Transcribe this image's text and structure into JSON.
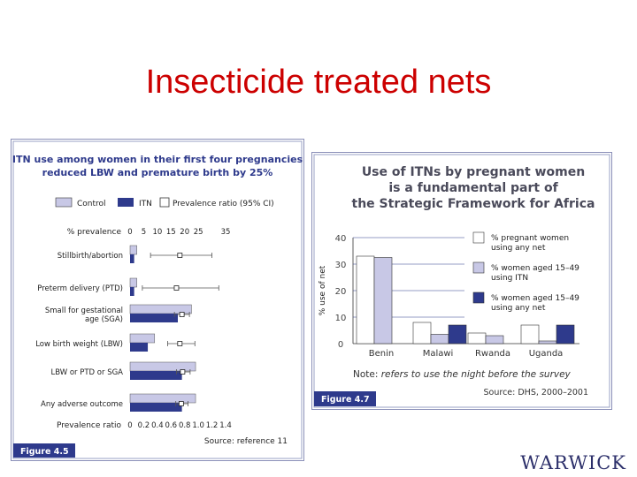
{
  "slide": {
    "title": "Insecticide treated nets",
    "logo": "WARWICK"
  },
  "colors": {
    "control": "#c8c8e6",
    "itn": "#2e3a8c",
    "panel_blue": "#2e3a8c",
    "title_red": "#cc0000"
  },
  "chart_data": [
    {
      "type": "bar",
      "orientation": "horizontal",
      "title": [
        "ITN use among women in their first four pregnancies",
        "reduced LBW and premature birth by 25%"
      ],
      "legend": [
        "Control",
        "ITN",
        "Prevalence ratio (95% CI)"
      ],
      "xlabel_top": "% prevalence",
      "xticks_top": [
        0,
        5,
        10,
        15,
        20,
        25,
        35
      ],
      "xlim_top": [
        0,
        35
      ],
      "xlabel_bottom": "Prevalence ratio",
      "xticks_bottom": [
        0,
        0.2,
        0.4,
        0.6,
        0.8,
        1.0,
        1.2,
        1.4
      ],
      "xlim_bottom": [
        0,
        1.4
      ],
      "categories": [
        [
          "Stillbirth/abortion"
        ],
        [
          "Preterm delivery (PTD)"
        ],
        [
          "Small for gestational",
          "age (SGA)"
        ],
        [
          "Low birth weight (LBW)"
        ],
        [
          "LBW or PTD or SGA"
        ],
        [
          "Any adverse outcome"
        ]
      ],
      "series": [
        {
          "name": "Control",
          "values": [
            2.5,
            2.5,
            22.5,
            9,
            24,
            24
          ]
        },
        {
          "name": "ITN",
          "values": [
            1.5,
            1.5,
            17.5,
            6.5,
            19,
            19
          ]
        }
      ],
      "prevalence_ratio": [
        {
          "value": 0.73,
          "low": 0.3,
          "high": 1.2
        },
        {
          "value": 0.68,
          "low": 0.18,
          "high": 1.3
        },
        {
          "value": 0.76,
          "low": 0.65,
          "high": 0.87
        },
        {
          "value": 0.73,
          "low": 0.55,
          "high": 0.95
        },
        {
          "value": 0.77,
          "low": 0.68,
          "high": 0.88
        },
        {
          "value": 0.75,
          "low": 0.67,
          "high": 0.85
        }
      ],
      "source": "Source: reference 11",
      "figure_label": "Figure 4.5"
    },
    {
      "type": "bar",
      "title": [
        "Use of ITNs by pregnant women",
        "is a fundamental part of",
        "the Strategic Framework for Africa"
      ],
      "ylabel": "% use of net",
      "yticks": [
        "0",
        "10",
        "20",
        "30",
        "40"
      ],
      "ylim": [
        0,
        40
      ],
      "categories": [
        "Benin",
        "Malawi",
        "Rwanda",
        "Uganda"
      ],
      "series": [
        {
          "name": "% pregnant women using any net",
          "values": [
            33,
            8,
            4,
            7
          ]
        },
        {
          "name": "% women aged 15–49 using ITN",
          "values": [
            32.5,
            3.5,
            3,
            1
          ]
        },
        {
          "name": "% women aged 15–49 using any net",
          "values": [
            0,
            7,
            0,
            7
          ]
        }
      ],
      "legend": [
        [
          "% pregnant women",
          "using any net"
        ],
        [
          "% women aged 15–49",
          "using ITN"
        ],
        [
          "% women aged 15–49",
          "using any net"
        ]
      ],
      "note_prefix": "Note:",
      "note_text": "refers to use the night before the survey",
      "source": "Source: DHS, 2000–2001",
      "figure_label": "Figure 4.7"
    }
  ]
}
